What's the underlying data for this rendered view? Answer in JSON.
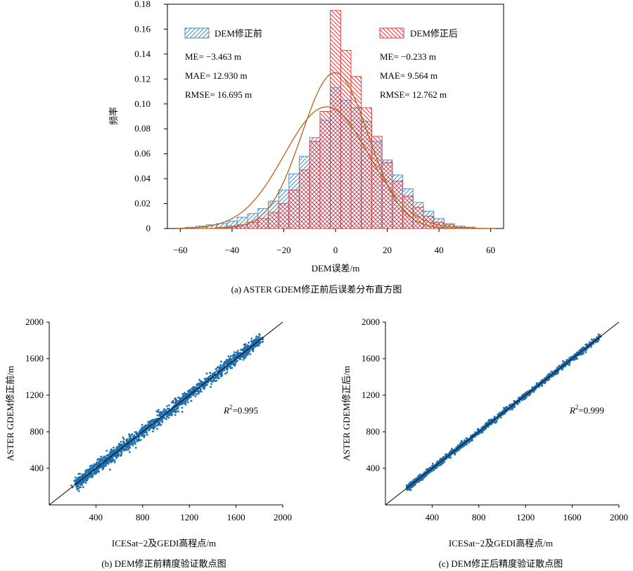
{
  "chart_data": [
    {
      "type": "histogram",
      "caption": "(a) ASTER GDEM修正前后误差分布直方图",
      "xlabel": "DEM误差/m",
      "ylabel": "频率",
      "xlim": [
        -65,
        65
      ],
      "ylim": [
        0,
        0.18
      ],
      "xticks": [
        "−60",
        "−40",
        "−20",
        "0",
        "20",
        "40",
        "60"
      ],
      "xtick_values": [
        -60,
        -40,
        -20,
        0,
        20,
        40,
        60
      ],
      "yticks": [
        "0",
        "0.02",
        "0.04",
        "0.06",
        "0.08",
        "0.10",
        "0.12",
        "0.14",
        "0.16",
        "0.18"
      ],
      "ytick_values": [
        0,
        0.02,
        0.04,
        0.06,
        0.08,
        0.1,
        0.12,
        0.14,
        0.16,
        0.18
      ],
      "bin_width": 4,
      "bin_starts": [
        -58,
        -54,
        -50,
        -46,
        -42,
        -38,
        -34,
        -30,
        -26,
        -22,
        -18,
        -14,
        -10,
        -6,
        -2,
        2,
        6,
        10,
        14,
        18,
        22,
        26,
        30,
        34,
        38,
        42,
        46,
        50
      ],
      "series": [
        {
          "name": "DEM修正前",
          "color": "#3a8fd0",
          "hatch": "forward",
          "stats": {
            "me": "ME= −3.463 m",
            "mae": "MAE= 12.930 m",
            "rmse": "RMSE= 16.695 m"
          },
          "values": [
            0.001,
            0.002,
            0.003,
            0.004,
            0.006,
            0.009,
            0.012,
            0.016,
            0.022,
            0.031,
            0.044,
            0.058,
            0.073,
            0.087,
            0.113,
            0.103,
            0.097,
            0.086,
            0.07,
            0.055,
            0.043,
            0.032,
            0.021,
            0.014,
            0.008,
            0.004,
            0.002,
            0.001
          ],
          "fit": {
            "mean": -3.463,
            "sd": 16.34
          }
        },
        {
          "name": "DEM修正后",
          "color": "#e03a3a",
          "hatch": "backward",
          "stats": {
            "me": "ME= −0.233 m",
            "mae": "MAE= 9.564 m",
            "rmse": "RMSE= 12.762 m"
          },
          "values": [
            0,
            0,
            0,
            0.001,
            0.002,
            0.003,
            0.005,
            0.008,
            0.013,
            0.02,
            0.031,
            0.047,
            0.07,
            0.094,
            0.175,
            0.143,
            0.122,
            0.097,
            0.074,
            0.053,
            0.038,
            0.026,
            0.017,
            0.01,
            0.005,
            0.003,
            0.001,
            0.001
          ],
          "fit": {
            "mean": -0.233,
            "sd": 12.76
          }
        }
      ],
      "fit_line_color": "#b5651d"
    },
    {
      "type": "scatter",
      "caption": "(b) DEM修正前精度验证散点图",
      "xlabel": "ICESat−2及GEDI高程点/m",
      "ylabel": "ASTER GDEM修正前/m",
      "xlim": [
        0,
        2000
      ],
      "ylim": [
        0,
        2000
      ],
      "xticks": [
        "400",
        "800",
        "1200",
        "1600",
        "2000"
      ],
      "xtick_values": [
        400,
        800,
        1200,
        1600,
        2000
      ],
      "yticks": [
        "400",
        "800",
        "1200",
        "1600",
        "2000"
      ],
      "ytick_values": [
        400,
        800,
        1200,
        1600,
        2000
      ],
      "r2_prefix": "R",
      "r2_sup": "2",
      "r2_value": "=0.995",
      "point_color": "#1f6fae",
      "points_x_range": [
        230,
        1820
      ],
      "points_spread": 32,
      "reference_line": "y = x"
    },
    {
      "type": "scatter",
      "caption": "(c) DEM修正后精度验证散点图",
      "xlabel": "ICESat−2及GEDI高程点/m",
      "ylabel": "ASTER GDEM修正后/m",
      "xlim": [
        0,
        2000
      ],
      "ylim": [
        0,
        2000
      ],
      "xticks": [
        "400",
        "800",
        "1200",
        "1600",
        "2000"
      ],
      "xtick_values": [
        400,
        800,
        1200,
        1600,
        2000
      ],
      "yticks": [
        "400",
        "800",
        "1200",
        "1600",
        "2000"
      ],
      "ytick_values": [
        400,
        800,
        1200,
        1600,
        2000
      ],
      "r2_prefix": "R",
      "r2_sup": "2",
      "r2_value": "=0.999",
      "point_color": "#1f6fae",
      "points_x_range": [
        190,
        1840
      ],
      "points_spread": 15,
      "reference_line": "y = x"
    }
  ]
}
